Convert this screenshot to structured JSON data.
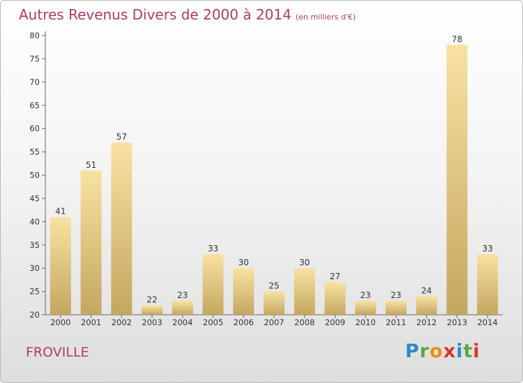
{
  "title": "Autres Revenus Divers de 2000 à 2014",
  "subtitle": "(en milliers d'€)",
  "location": "FROVILLE",
  "brand": {
    "letters": [
      {
        "ch": "P",
        "color": "#2f86c6"
      },
      {
        "ch": "r",
        "color": "#5aa93b"
      },
      {
        "ch": "o",
        "color": "#f08a1c"
      },
      {
        "ch": "x",
        "color": "#d8342b"
      },
      {
        "ch": "i",
        "color": "#2f86c6"
      },
      {
        "ch": "t",
        "color": "#5aa93b"
      },
      {
        "ch": "i",
        "color": "#d8342b"
      }
    ]
  },
  "colors": {
    "title": "#b03a6a",
    "bar_light": "#f7dfa0",
    "bar_dark": "#c6a862",
    "axis": "#666666"
  },
  "chart_data": {
    "type": "bar",
    "title": "Autres Revenus Divers de 2000 à 2014",
    "subtitle": "(en milliers d'€)",
    "categories": [
      "2000",
      "2001",
      "2002",
      "2003",
      "2004",
      "2005",
      "2006",
      "2007",
      "2008",
      "2009",
      "2010",
      "2011",
      "2012",
      "2013",
      "2014"
    ],
    "values": [
      41,
      51,
      57,
      22,
      23,
      33,
      30,
      25,
      30,
      27,
      23,
      23,
      24,
      78,
      33
    ],
    "ylim": [
      20,
      80
    ],
    "yticks": [
      20,
      25,
      30,
      35,
      40,
      45,
      50,
      55,
      60,
      65,
      70,
      75,
      80
    ],
    "grid": false,
    "data_labels": true
  }
}
